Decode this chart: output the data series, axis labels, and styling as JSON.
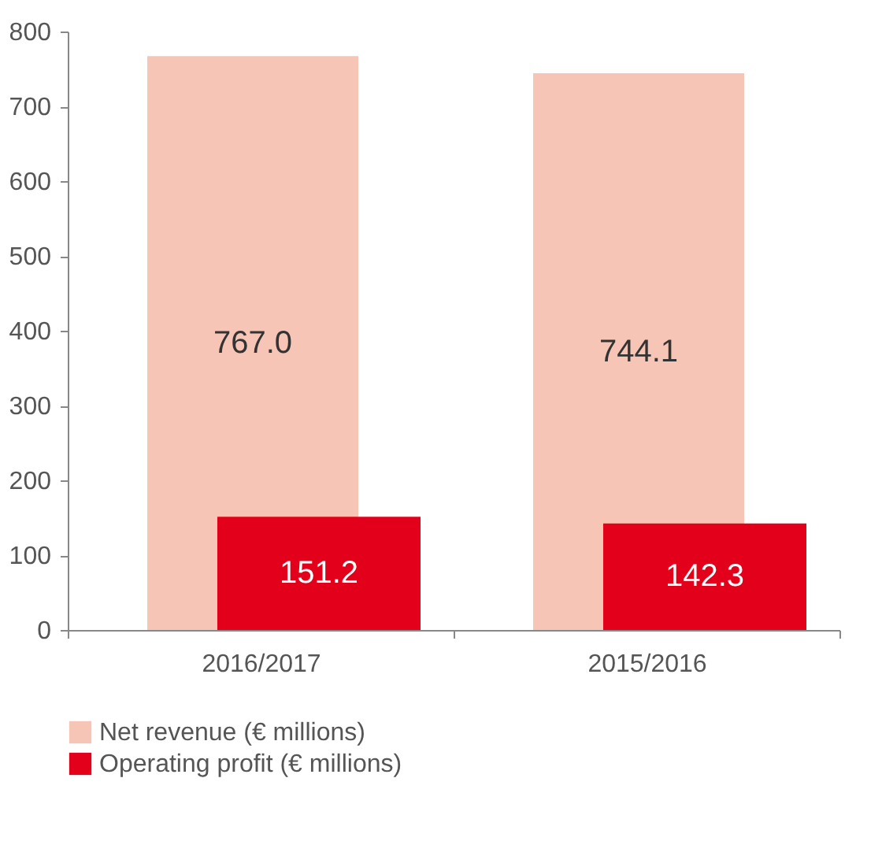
{
  "chart_data": {
    "type": "bar",
    "categories": [
      "2016/2017",
      "2015/2016"
    ],
    "series": [
      {
        "name": "Net revenue (€ millions)",
        "color": "#f7c5b5",
        "values": [
          767.0,
          744.1
        ],
        "value_labels": [
          "767.0",
          "744.1"
        ]
      },
      {
        "name": "Operating profit (€ millions)",
        "color": "#e2001a",
        "values": [
          151.2,
          142.3
        ],
        "value_labels": [
          "151.2",
          "142.3"
        ]
      }
    ],
    "ylim": [
      0,
      800
    ],
    "yticks": [
      0,
      100,
      200,
      300,
      400,
      500,
      600,
      700,
      800
    ],
    "grid": false,
    "legend": "bottom left"
  }
}
